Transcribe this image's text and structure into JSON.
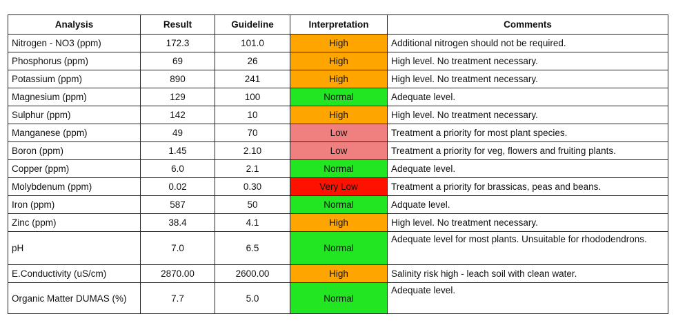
{
  "headers": [
    "Analysis",
    "Result",
    "Guideline",
    "Interpretation",
    "Comments"
  ],
  "status_colors": {
    "High": "#FFA500",
    "Normal": "#22E622",
    "Low": "#F08080",
    "Very Low": "#FF1100"
  },
  "rows": [
    {
      "analysis": "Nitrogen - NO3 (ppm)",
      "result": "172.3",
      "guideline": "101.0",
      "interpretation": "High",
      "comment": "Additional nitrogen should not be required."
    },
    {
      "analysis": "Phosphorus (ppm)",
      "result": "69",
      "guideline": "26",
      "interpretation": "High",
      "comment": "High level. No treatment necessary."
    },
    {
      "analysis": "Potassium (ppm)",
      "result": "890",
      "guideline": "241",
      "interpretation": "High",
      "comment": "High level. No treatment necessary."
    },
    {
      "analysis": "Magnesium (ppm)",
      "result": "129",
      "guideline": "100",
      "interpretation": "Normal",
      "comment": "Adequate level."
    },
    {
      "analysis": "Sulphur (ppm)",
      "result": "142",
      "guideline": "10",
      "interpretation": "High",
      "comment": "High level. No treatment necessary."
    },
    {
      "analysis": "Manganese (ppm)",
      "result": "49",
      "guideline": "70",
      "interpretation": "Low",
      "comment": "Treatment a priority for most plant species."
    },
    {
      "analysis": "Boron (ppm)",
      "result": "1.45",
      "guideline": "2.10",
      "interpretation": "Low",
      "comment": "Treatment a priority for veg, flowers and fruiting plants."
    },
    {
      "analysis": "Copper (ppm)",
      "result": "6.0",
      "guideline": "2.1",
      "interpretation": "Normal",
      "comment": "Adequate level."
    },
    {
      "analysis": "Molybdenum (ppm)",
      "result": "0.02",
      "guideline": "0.30",
      "interpretation": "Very Low",
      "comment": "Treatment a priority for brassicas, peas and beans."
    },
    {
      "analysis": "Iron (ppm)",
      "result": "587",
      "guideline": "50",
      "interpretation": "Normal",
      "comment": "Adquate level."
    },
    {
      "analysis": "Zinc (ppm)",
      "result": "38.4",
      "guideline": "4.1",
      "interpretation": "High",
      "comment": "High level. No treatment necessary."
    },
    {
      "analysis": "pH",
      "result": "7.0",
      "guideline": "6.5",
      "interpretation": "Normal",
      "comment": "Adequate level for most plants. Unsuitable for rhododendrons."
    },
    {
      "analysis": "E.Conductivity (uS/cm)",
      "result": "2870.00",
      "guideline": "2600.00",
      "interpretation": "High",
      "comment": "Salinity risk high - leach soil with clean water."
    },
    {
      "analysis": "Organic Matter DUMAS (%)",
      "result": "7.7",
      "guideline": "5.0",
      "interpretation": "Normal",
      "comment": "Adequate level."
    }
  ]
}
